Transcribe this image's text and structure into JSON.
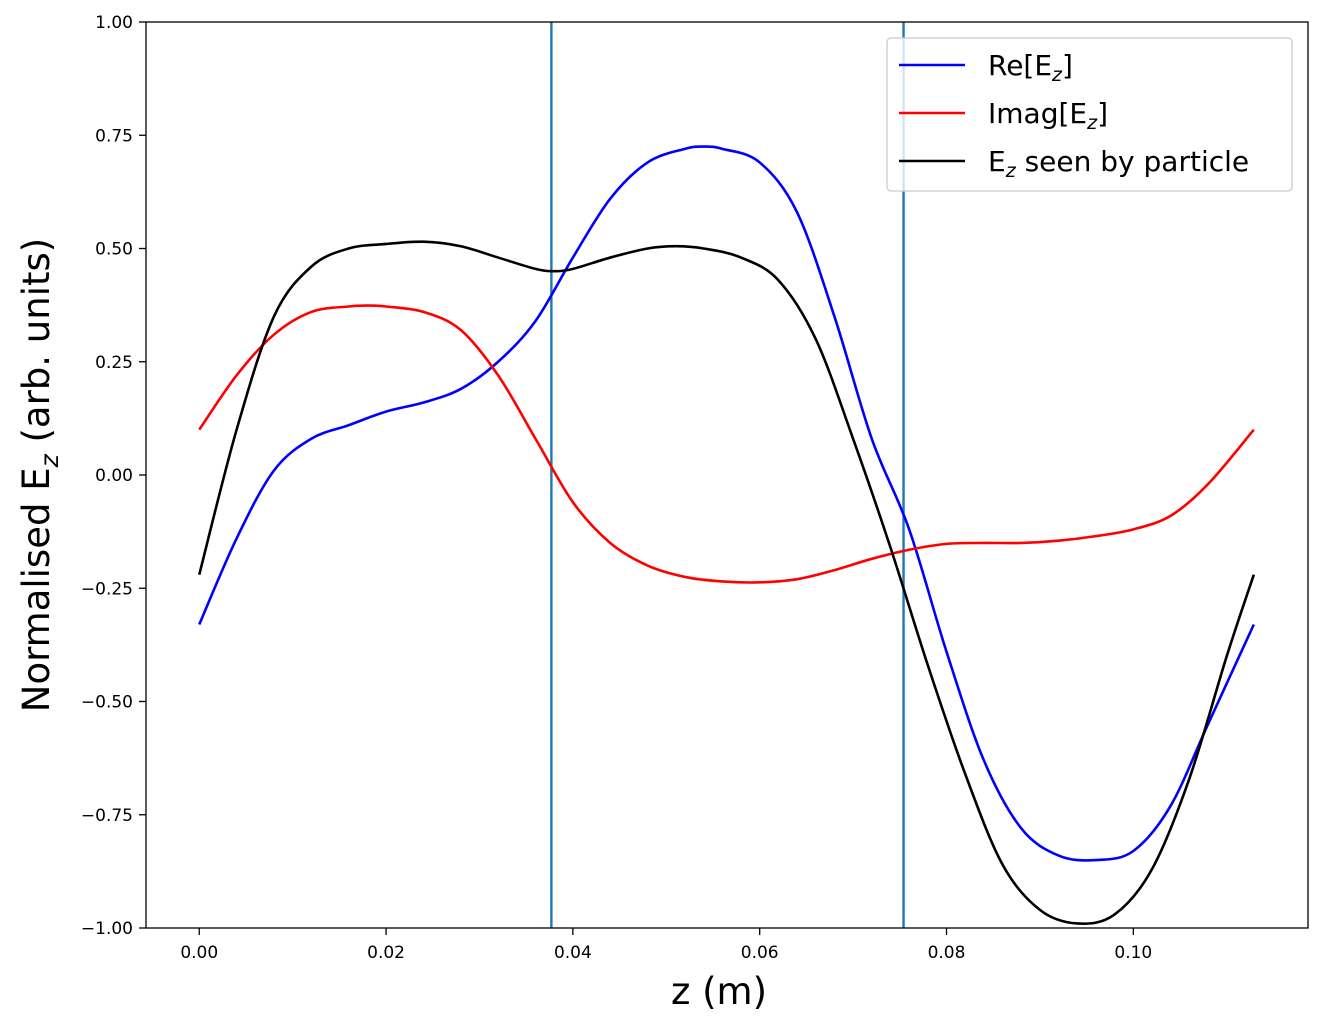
{
  "chart_data": {
    "type": "line",
    "xlabel": "z (m)",
    "ylabel": {
      "main": "Normalised E",
      "sub": "z",
      "rest": " (arb. units)"
    },
    "xlim": [
      -0.0057,
      0.1187
    ],
    "ylim": [
      -1.0,
      1.0
    ],
    "xticks": [
      0.0,
      0.02,
      0.04,
      0.06,
      0.08,
      0.1
    ],
    "xtick_labels": [
      "0.00",
      "0.02",
      "0.04",
      "0.06",
      "0.08",
      "0.10"
    ],
    "yticks": [
      -1.0,
      -0.75,
      -0.5,
      -0.25,
      0.0,
      0.25,
      0.5,
      0.75,
      1.0
    ],
    "ytick_labels": [
      "−1.00",
      "−0.75",
      "−0.50",
      "−0.25",
      "0.00",
      "0.25",
      "0.50",
      "0.75",
      "1.00"
    ],
    "grid": false,
    "legend_position": "top-right",
    "vlines": [
      {
        "x": 0.0377,
        "color": "#1f77b4"
      },
      {
        "x": 0.0754,
        "color": "#1f77b4"
      }
    ],
    "series": [
      {
        "legend": {
          "main": "Re[E",
          "sub": "z",
          "rest": "]"
        },
        "color": "#0000ff",
        "x": [
          0.0,
          0.004,
          0.008,
          0.012,
          0.016,
          0.02,
          0.024,
          0.028,
          0.032,
          0.036,
          0.04,
          0.044,
          0.048,
          0.052,
          0.054,
          0.056,
          0.06,
          0.064,
          0.068,
          0.072,
          0.076,
          0.08,
          0.084,
          0.088,
          0.092,
          0.096,
          0.1,
          0.104,
          0.108,
          0.1129
        ],
        "y": [
          -0.33,
          -0.14,
          0.01,
          0.08,
          0.11,
          0.14,
          0.16,
          0.19,
          0.25,
          0.34,
          0.48,
          0.61,
          0.69,
          0.72,
          0.725,
          0.72,
          0.69,
          0.58,
          0.35,
          0.08,
          -0.12,
          -0.39,
          -0.63,
          -0.78,
          -0.84,
          -0.85,
          -0.83,
          -0.73,
          -0.55,
          -0.33
        ]
      },
      {
        "legend": {
          "main": "Imag[E",
          "sub": "z",
          "rest": "]"
        },
        "color": "#ff0000",
        "x": [
          0.0,
          0.004,
          0.008,
          0.012,
          0.016,
          0.018,
          0.02,
          0.024,
          0.028,
          0.032,
          0.036,
          0.04,
          0.044,
          0.048,
          0.052,
          0.056,
          0.06,
          0.064,
          0.068,
          0.072,
          0.076,
          0.08,
          0.084,
          0.088,
          0.092,
          0.096,
          0.1,
          0.104,
          0.108,
          0.1129
        ],
        "y": [
          0.1,
          0.22,
          0.31,
          0.36,
          0.372,
          0.374,
          0.372,
          0.36,
          0.32,
          0.22,
          0.08,
          -0.06,
          -0.15,
          -0.2,
          -0.225,
          -0.235,
          -0.237,
          -0.23,
          -0.21,
          -0.185,
          -0.165,
          -0.152,
          -0.15,
          -0.15,
          -0.145,
          -0.135,
          -0.12,
          -0.09,
          -0.02,
          0.1
        ]
      },
      {
        "legend": {
          "main": "E",
          "sub": "z",
          "rest": " seen by particle"
        },
        "color": "#000000",
        "x": [
          0.0,
          0.004,
          0.008,
          0.012,
          0.016,
          0.02,
          0.024,
          0.028,
          0.032,
          0.036,
          0.038,
          0.04,
          0.044,
          0.048,
          0.051,
          0.054,
          0.058,
          0.062,
          0.066,
          0.07,
          0.074,
          0.078,
          0.082,
          0.086,
          0.09,
          0.094,
          0.098,
          0.102,
          0.106,
          0.11,
          0.1129
        ],
        "y": [
          -0.22,
          0.1,
          0.35,
          0.46,
          0.5,
          0.51,
          0.515,
          0.505,
          0.48,
          0.455,
          0.45,
          0.455,
          0.48,
          0.5,
          0.505,
          0.5,
          0.48,
          0.43,
          0.3,
          0.08,
          -0.16,
          -0.42,
          -0.66,
          -0.86,
          -0.96,
          -0.99,
          -0.97,
          -0.87,
          -0.67,
          -0.4,
          -0.22
        ]
      }
    ]
  }
}
